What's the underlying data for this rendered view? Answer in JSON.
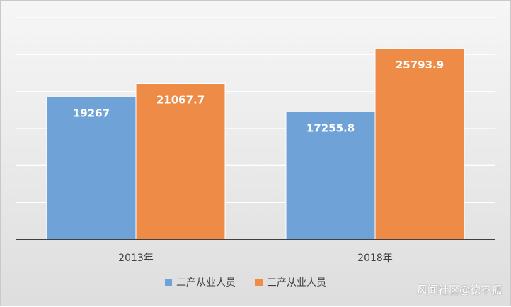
{
  "chart_data": {
    "type": "bar",
    "categories": [
      "2013年",
      "2018年"
    ],
    "series": [
      {
        "name": "二产从业人员",
        "values": [
          19267,
          17255.8
        ],
        "labels": [
          "19267",
          "17255.8"
        ]
      },
      {
        "name": "三产从业人员",
        "values": [
          21067.7,
          25793.9
        ],
        "labels": [
          "21067.7",
          "25793.9"
        ]
      }
    ],
    "ylim": [
      0,
      30000
    ],
    "gridlines": true,
    "legend_position": "bottom",
    "colors": {
      "series_0": "#6fa3d8",
      "series_1": "#ed8b47",
      "grid": "#ffffff",
      "axis": "#404040"
    }
  },
  "watermark": "风闻社区@德不孤"
}
